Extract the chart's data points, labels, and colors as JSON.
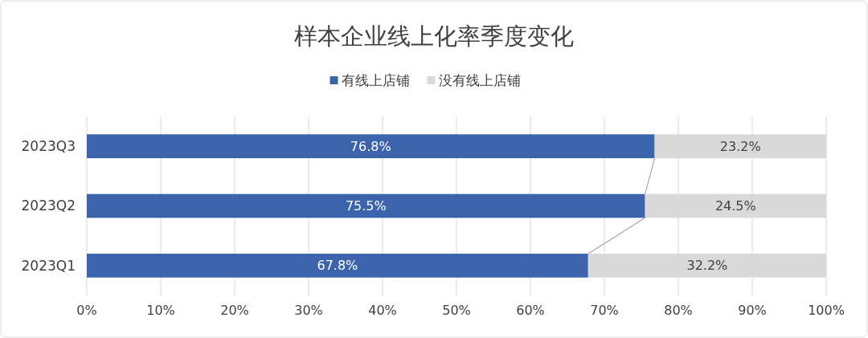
{
  "chart_data": {
    "type": "bar",
    "title": "样本企业线上化率季度变化",
    "orientation": "horizontal",
    "stacked": true,
    "categories": [
      "2023Q3",
      "2023Q2",
      "2023Q1"
    ],
    "series": [
      {
        "name": "有线上店铺",
        "color": "#3b64ad",
        "values": [
          76.8,
          75.5,
          67.8
        ]
      },
      {
        "name": "没有线上店铺",
        "color": "#d9d9d9",
        "values": [
          23.2,
          24.5,
          32.2
        ]
      }
    ],
    "xlim": [
      0,
      100
    ],
    "xticks": [
      {
        "value": 0,
        "label": "0%"
      },
      {
        "value": 10,
        "label": "10%"
      },
      {
        "value": 20,
        "label": "20%"
      },
      {
        "value": 30,
        "label": "30%"
      },
      {
        "value": 40,
        "label": "40%"
      },
      {
        "value": 50,
        "label": "50%"
      },
      {
        "value": 60,
        "label": "60%"
      },
      {
        "value": 70,
        "label": "70%"
      },
      {
        "value": 80,
        "label": "80%"
      },
      {
        "value": 90,
        "label": "90%"
      },
      {
        "value": 100,
        "label": "100%"
      }
    ],
    "value_labels": [
      [
        "76.8%",
        "75.5%",
        "67.8%"
      ],
      [
        "23.2%",
        "24.5%",
        "32.2%"
      ]
    ],
    "grid": "x",
    "legend": "top"
  }
}
